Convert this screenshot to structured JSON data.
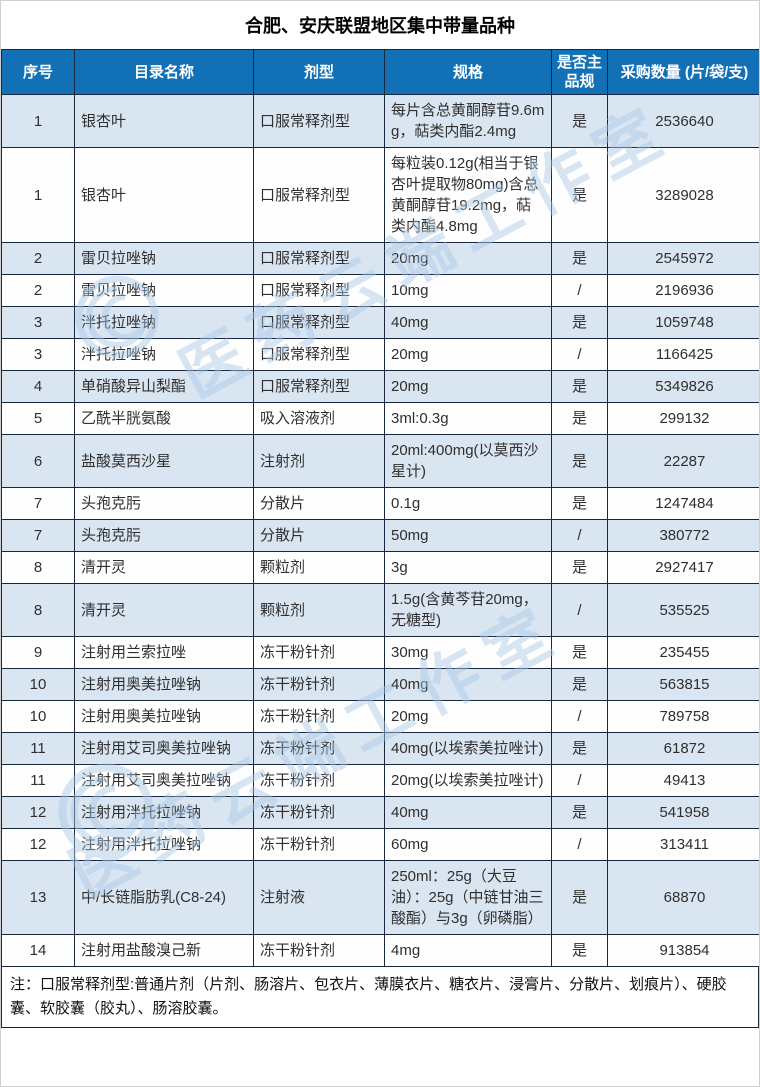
{
  "title": "合肥、安庆联盟地区集中带量品种",
  "colors": {
    "header_bg": "#1270b6",
    "header_text": "#ffffff",
    "alt_row_bg": "#d9e5f1",
    "row_bg": "#fefefe",
    "border": "#1a2740",
    "cell_text": "#2f2f2f",
    "watermark": "#a9c9e6"
  },
  "watermark": {
    "text": "医药云端工作室",
    "logo": "swirl-ring-logo"
  },
  "table": {
    "headers": [
      "序号",
      "目录名称",
      "剂型",
      "规格",
      "是否主品规",
      "采购数量 (片/袋/支)"
    ],
    "rows": [
      [
        "1",
        "银杏叶",
        "口服常释剂型",
        "每片含总黄酮醇苷9.6mg，萜类内酯2.4mg",
        "是",
        "2536640"
      ],
      [
        "1",
        "银杏叶",
        "口服常释剂型",
        "每粒装0.12g(相当于银杏叶提取物80mg)含总黄酮醇苷19.2mg，萜类内酯4.8mg",
        "是",
        "3289028"
      ],
      [
        "2",
        "雷贝拉唑钠",
        "口服常释剂型",
        "20mg",
        "是",
        "2545972"
      ],
      [
        "2",
        "雷贝拉唑钠",
        "口服常释剂型",
        "10mg",
        "/",
        "2196936"
      ],
      [
        "3",
        "泮托拉唑钠",
        "口服常释剂型",
        "40mg",
        "是",
        "1059748"
      ],
      [
        "3",
        "泮托拉唑钠",
        "口服常释剂型",
        "20mg",
        "/",
        "1166425"
      ],
      [
        "4",
        "单硝酸异山梨酯",
        "口服常释剂型",
        "20mg",
        "是",
        "5349826"
      ],
      [
        "5",
        "乙酰半胱氨酸",
        "吸入溶液剂",
        "3ml:0.3g",
        "是",
        "299132"
      ],
      [
        "6",
        "盐酸莫西沙星",
        "注射剂",
        "20ml:400mg(以莫西沙星计)",
        "是",
        "22287"
      ],
      [
        "7",
        "头孢克肟",
        "分散片",
        "0.1g",
        "是",
        "1247484"
      ],
      [
        "7",
        "头孢克肟",
        "分散片",
        "50mg",
        "/",
        "380772"
      ],
      [
        "8",
        "清开灵",
        "颗粒剂",
        "3g",
        "是",
        "2927417"
      ],
      [
        "8",
        "清开灵",
        "颗粒剂",
        "1.5g(含黄芩苷20mg，无糖型)",
        "/",
        "535525"
      ],
      [
        "9",
        "注射用兰索拉唑",
        "冻干粉针剂",
        "30mg",
        "是",
        "235455"
      ],
      [
        "10",
        "注射用奥美拉唑钠",
        "冻干粉针剂",
        "40mg",
        "是",
        "563815"
      ],
      [
        "10",
        "注射用奥美拉唑钠",
        "冻干粉针剂",
        "20mg",
        "/",
        "789758"
      ],
      [
        "11",
        "注射用艾司奥美拉唑钠",
        "冻干粉针剂",
        "40mg(以埃索美拉唑计)",
        "是",
        "61872"
      ],
      [
        "11",
        "注射用艾司奥美拉唑钠",
        "冻干粉针剂",
        "20mg(以埃索美拉唑计)",
        "/",
        "49413"
      ],
      [
        "12",
        "注射用泮托拉唑钠",
        "冻干粉针剂",
        "40mg",
        "是",
        "541958"
      ],
      [
        "12",
        "注射用泮托拉唑钠",
        "冻干粉针剂",
        "60mg",
        "/",
        "313411"
      ],
      [
        "13",
        "中/长链脂肪乳(C8-24)",
        "注射液",
        "250ml：25g（大豆油）：25g（中链甘油三酸酯）与3g（卵磷脂）",
        "是",
        "68870"
      ],
      [
        "14",
        "注射用盐酸溴己新",
        "冻干粉针剂",
        "4mg",
        "是",
        "913854"
      ]
    ],
    "note": "注：口服常释剂型:普通片剂（片剂、肠溶片、包衣片、薄膜衣片、糖衣片、浸膏片、分散片、划痕片）、硬胶囊、软胶囊（胶丸）、肠溶胶囊。"
  }
}
